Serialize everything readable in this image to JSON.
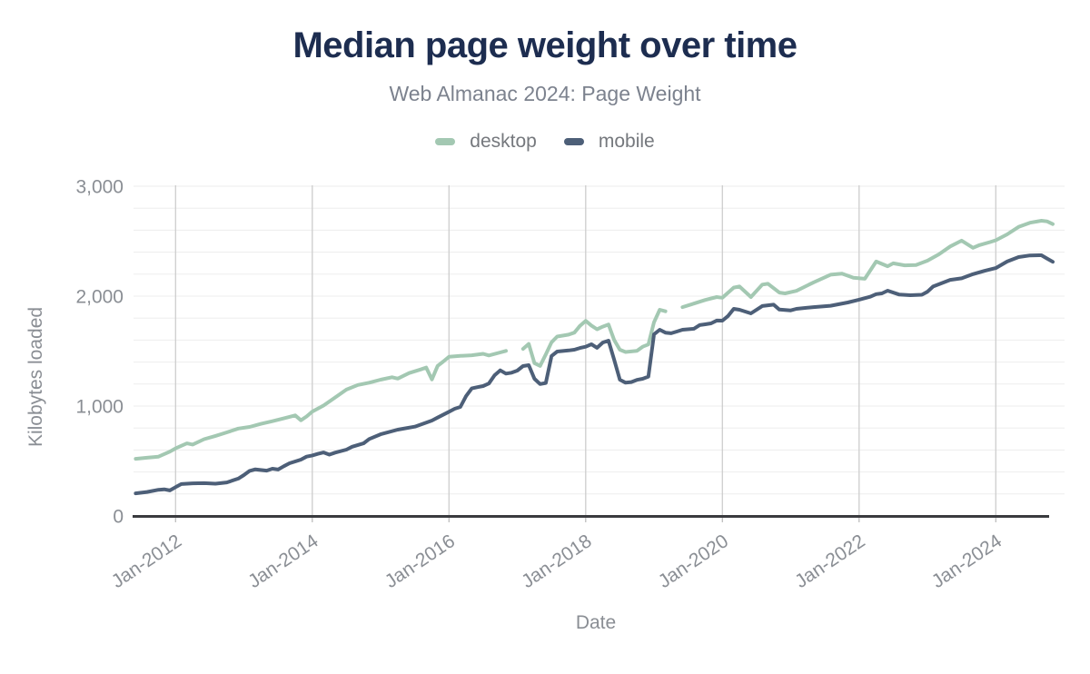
{
  "page": {
    "background": "#ffffff"
  },
  "header": {
    "title": "Median page weight over time",
    "subtitle": "Web Almanac 2024: Page Weight"
  },
  "legend": [
    {
      "label": "desktop",
      "color": "#a3c8b2"
    },
    {
      "label": "mobile",
      "color": "#4d5f78"
    }
  ],
  "axes": {
    "y": {
      "title": "Kilobytes loaded",
      "max": 3000,
      "minor_gridline_step": 200,
      "ticks": [
        {
          "value": 0,
          "label": "0"
        },
        {
          "value": 1000,
          "label": "1,000"
        },
        {
          "value": 2000,
          "label": "2,000"
        },
        {
          "value": 3000,
          "label": "3,000"
        }
      ]
    },
    "x": {
      "title": "Date",
      "ticks": [
        {
          "date": "2012-01",
          "label": "Jan-2012"
        },
        {
          "date": "2014-01",
          "label": "Jan-2014"
        },
        {
          "date": "2016-01",
          "label": "Jan-2016"
        },
        {
          "date": "2018-01",
          "label": "Jan-2018"
        },
        {
          "date": "2020-01",
          "label": "Jan-2020"
        },
        {
          "date": "2022-01",
          "label": "Jan-2022"
        },
        {
          "date": "2024-01",
          "label": "Jan-2024"
        }
      ]
    }
  },
  "chart_data": {
    "type": "line",
    "title": "Median page weight over time",
    "subtitle": "Web Almanac 2024: Page Weight",
    "xlabel": "Date",
    "ylabel": "Kilobytes loaded",
    "ylim": [
      0,
      3000
    ],
    "x_range": [
      "2011-06",
      "2024-11"
    ],
    "grid": {
      "vertical_major": true,
      "horizontal_minor_step": 200
    },
    "legend_position": "top",
    "note": "null values are gaps in the desktop series (no data plotted)",
    "series": [
      {
        "name": "desktop",
        "color": "#a3c8b2",
        "points": [
          [
            "2011-06",
            520
          ],
          [
            "2011-08",
            530
          ],
          [
            "2011-10",
            540
          ],
          [
            "2011-12",
            585
          ],
          [
            "2012-01",
            615
          ],
          [
            "2012-03",
            660
          ],
          [
            "2012-04",
            650
          ],
          [
            "2012-06",
            698
          ],
          [
            "2012-08",
            728
          ],
          [
            "2012-10",
            760
          ],
          [
            "2012-12",
            795
          ],
          [
            "2013-02",
            810
          ],
          [
            "2013-04",
            838
          ],
          [
            "2013-06",
            862
          ],
          [
            "2013-08",
            888
          ],
          [
            "2013-10",
            915
          ],
          [
            "2013-11",
            870
          ],
          [
            "2013-12",
            905
          ],
          [
            "2014-01",
            950
          ],
          [
            "2014-03",
            1005
          ],
          [
            "2014-05",
            1078
          ],
          [
            "2014-07",
            1150
          ],
          [
            "2014-09",
            1192
          ],
          [
            "2014-11",
            1212
          ],
          [
            "2015-01",
            1240
          ],
          [
            "2015-03",
            1262
          ],
          [
            "2015-04",
            1250
          ],
          [
            "2015-06",
            1300
          ],
          [
            "2015-08",
            1332
          ],
          [
            "2015-09",
            1350
          ],
          [
            "2015-10",
            1242
          ],
          [
            "2015-11",
            1365
          ],
          [
            "2015-12",
            1405
          ],
          [
            "2016-01",
            1448
          ],
          [
            "2016-03",
            1456
          ],
          [
            "2016-05",
            1462
          ],
          [
            "2016-07",
            1475
          ],
          [
            "2016-08",
            1460
          ],
          [
            "2016-10",
            1488
          ],
          [
            "2016-11",
            1502
          ],
          [
            "2016-12",
            null
          ],
          [
            "2017-01",
            null
          ],
          [
            "2017-02",
            1520
          ],
          [
            "2017-03",
            1565
          ],
          [
            "2017-04",
            1390
          ],
          [
            "2017-05",
            1365
          ],
          [
            "2017-06",
            1470
          ],
          [
            "2017-07",
            1580
          ],
          [
            "2017-08",
            1632
          ],
          [
            "2017-10",
            1650
          ],
          [
            "2017-11",
            1668
          ],
          [
            "2017-12",
            1730
          ],
          [
            "2018-01",
            1775
          ],
          [
            "2018-02",
            1732
          ],
          [
            "2018-03",
            1698
          ],
          [
            "2018-04",
            1722
          ],
          [
            "2018-05",
            1742
          ],
          [
            "2018-06",
            1600
          ],
          [
            "2018-07",
            1512
          ],
          [
            "2018-08",
            1492
          ],
          [
            "2018-10",
            1502
          ],
          [
            "2018-11",
            1540
          ],
          [
            "2018-12",
            1560
          ],
          [
            "2019-01",
            1762
          ],
          [
            "2019-02",
            1876
          ],
          [
            "2019-03",
            1862
          ],
          [
            "2019-04",
            null
          ],
          [
            "2019-05",
            null
          ],
          [
            "2019-06",
            1900
          ],
          [
            "2019-08",
            1932
          ],
          [
            "2019-10",
            1965
          ],
          [
            "2019-12",
            1992
          ],
          [
            "2020-01",
            1985
          ],
          [
            "2020-03",
            2078
          ],
          [
            "2020-04",
            2088
          ],
          [
            "2020-06",
            1992
          ],
          [
            "2020-08",
            2105
          ],
          [
            "2020-09",
            2112
          ],
          [
            "2020-11",
            2032
          ],
          [
            "2020-12",
            2025
          ],
          [
            "2021-02",
            2048
          ],
          [
            "2021-05",
            2125
          ],
          [
            "2021-08",
            2195
          ],
          [
            "2021-10",
            2205
          ],
          [
            "2021-12",
            2168
          ],
          [
            "2022-02",
            2158
          ],
          [
            "2022-04",
            2315
          ],
          [
            "2022-06",
            2272
          ],
          [
            "2022-07",
            2298
          ],
          [
            "2022-09",
            2280
          ],
          [
            "2022-11",
            2283
          ],
          [
            "2023-01",
            2322
          ],
          [
            "2023-03",
            2380
          ],
          [
            "2023-05",
            2452
          ],
          [
            "2023-07",
            2505
          ],
          [
            "2023-09",
            2440
          ],
          [
            "2023-10",
            2462
          ],
          [
            "2023-12",
            2492
          ],
          [
            "2024-01",
            2508
          ],
          [
            "2024-03",
            2562
          ],
          [
            "2024-05",
            2630
          ],
          [
            "2024-07",
            2668
          ],
          [
            "2024-09",
            2686
          ],
          [
            "2024-10",
            2680
          ],
          [
            "2024-11",
            2655
          ]
        ]
      },
      {
        "name": "mobile",
        "color": "#4d5f78",
        "points": [
          [
            "2011-06",
            206
          ],
          [
            "2011-08",
            218
          ],
          [
            "2011-10",
            238
          ],
          [
            "2011-11",
            242
          ],
          [
            "2011-12",
            232
          ],
          [
            "2012-01",
            262
          ],
          [
            "2012-02",
            290
          ],
          [
            "2012-04",
            297
          ],
          [
            "2012-06",
            298
          ],
          [
            "2012-08",
            293
          ],
          [
            "2012-10",
            305
          ],
          [
            "2012-12",
            340
          ],
          [
            "2013-01",
            372
          ],
          [
            "2013-02",
            410
          ],
          [
            "2013-03",
            424
          ],
          [
            "2013-05",
            412
          ],
          [
            "2013-06",
            430
          ],
          [
            "2013-07",
            422
          ],
          [
            "2013-08",
            452
          ],
          [
            "2013-09",
            479
          ],
          [
            "2013-11",
            512
          ],
          [
            "2013-12",
            540
          ],
          [
            "2014-01",
            550
          ],
          [
            "2014-02",
            565
          ],
          [
            "2014-03",
            578
          ],
          [
            "2014-04",
            558
          ],
          [
            "2014-05",
            576
          ],
          [
            "2014-07",
            603
          ],
          [
            "2014-08",
            630
          ],
          [
            "2014-10",
            660
          ],
          [
            "2014-11",
            700
          ],
          [
            "2015-01",
            743
          ],
          [
            "2015-04",
            785
          ],
          [
            "2015-07",
            812
          ],
          [
            "2015-10",
            868
          ],
          [
            "2015-11",
            895
          ],
          [
            "2016-01",
            948
          ],
          [
            "2016-02",
            975
          ],
          [
            "2016-03",
            992
          ],
          [
            "2016-04",
            1090
          ],
          [
            "2016-05",
            1160
          ],
          [
            "2016-06",
            1172
          ],
          [
            "2016-07",
            1182
          ],
          [
            "2016-08",
            1205
          ],
          [
            "2016-09",
            1280
          ],
          [
            "2016-10",
            1325
          ],
          [
            "2016-11",
            1295
          ],
          [
            "2016-12",
            1303
          ],
          [
            "2017-01",
            1322
          ],
          [
            "2017-02",
            1364
          ],
          [
            "2017-03",
            1372
          ],
          [
            "2017-04",
            1248
          ],
          [
            "2017-05",
            1200
          ],
          [
            "2017-06",
            1210
          ],
          [
            "2017-07",
            1455
          ],
          [
            "2017-08",
            1496
          ],
          [
            "2017-10",
            1506
          ],
          [
            "2017-11",
            1512
          ],
          [
            "2017-12",
            1528
          ],
          [
            "2018-01",
            1540
          ],
          [
            "2018-02",
            1562
          ],
          [
            "2018-03",
            1530
          ],
          [
            "2018-04",
            1578
          ],
          [
            "2018-05",
            1595
          ],
          [
            "2018-06",
            1420
          ],
          [
            "2018-07",
            1240
          ],
          [
            "2018-08",
            1212
          ],
          [
            "2018-09",
            1218
          ],
          [
            "2018-10",
            1238
          ],
          [
            "2018-11",
            1248
          ],
          [
            "2018-12",
            1268
          ],
          [
            "2019-01",
            1652
          ],
          [
            "2019-02",
            1694
          ],
          [
            "2019-03",
            1668
          ],
          [
            "2019-04",
            1662
          ],
          [
            "2019-05",
            1678
          ],
          [
            "2019-06",
            1694
          ],
          [
            "2019-08",
            1703
          ],
          [
            "2019-09",
            1736
          ],
          [
            "2019-10",
            1744
          ],
          [
            "2019-11",
            1752
          ],
          [
            "2019-12",
            1778
          ],
          [
            "2020-01",
            1777
          ],
          [
            "2020-02",
            1820
          ],
          [
            "2020-03",
            1884
          ],
          [
            "2020-04",
            1876
          ],
          [
            "2020-06",
            1843
          ],
          [
            "2020-08",
            1910
          ],
          [
            "2020-10",
            1922
          ],
          [
            "2020-11",
            1878
          ],
          [
            "2021-01",
            1870
          ],
          [
            "2021-02",
            1884
          ],
          [
            "2021-05",
            1900
          ],
          [
            "2021-08",
            1912
          ],
          [
            "2021-11",
            1942
          ],
          [
            "2022-01",
            1968
          ],
          [
            "2022-03",
            1995
          ],
          [
            "2022-04",
            2018
          ],
          [
            "2022-05",
            2025
          ],
          [
            "2022-06",
            2050
          ],
          [
            "2022-08",
            2015
          ],
          [
            "2022-10",
            2008
          ],
          [
            "2022-12",
            2012
          ],
          [
            "2023-01",
            2040
          ],
          [
            "2023-02",
            2088
          ],
          [
            "2023-05",
            2148
          ],
          [
            "2023-07",
            2162
          ],
          [
            "2023-09",
            2200
          ],
          [
            "2023-11",
            2230
          ],
          [
            "2024-01",
            2255
          ],
          [
            "2024-03",
            2315
          ],
          [
            "2024-05",
            2355
          ],
          [
            "2024-07",
            2370
          ],
          [
            "2024-09",
            2372
          ],
          [
            "2024-10",
            2342
          ],
          [
            "2024-11",
            2312
          ]
        ]
      }
    ]
  },
  "colors": {
    "title": "#1d2d50",
    "subtitle": "#7c828e",
    "tick_label": "#8a8e94",
    "axis_line": "#3a3b3f",
    "vertical_gridline": "#cdcdcd",
    "minor_gridline": "#ededed",
    "tick_mark": "#bdbdbd"
  }
}
